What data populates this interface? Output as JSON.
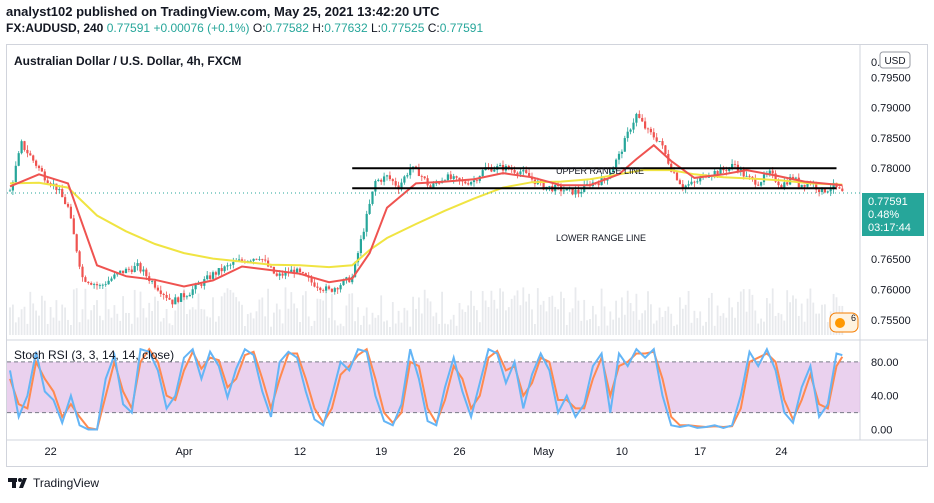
{
  "header": {
    "published_line": "analyst102 published on TradingView.com, May 25, 2021 13:42:20 UTC",
    "quote": {
      "symbol": "FX:AUDUSD, 240",
      "last": "0.77591",
      "change": "+0.00076 (+0.1%)",
      "o_label": "O:",
      "o": "0.77582",
      "h_label": "H:",
      "h": "0.77632",
      "l_label": "L:",
      "l": "0.77525",
      "c_label": "C:",
      "c": "0.77591"
    }
  },
  "price_pane": {
    "title": "Australian Dollar / U.S. Dollar, 4h, FXCM",
    "currency_button": "USD",
    "axis_ticks": [
      "0.79500",
      "0.79000",
      "0.78500",
      "0.78000",
      "0.77500",
      "0.77000",
      "0.76500",
      "0.76000",
      "0.75500"
    ],
    "top_tick_partial": "0.",
    "price_label": "0.77591",
    "percent_label": "0.48%",
    "countdown_label": "03:17:44",
    "upper_range_label": "UPPER RANGE LINE",
    "lower_range_label": "LOWER RANGE LINE",
    "event_badge": "6"
  },
  "stoch_pane": {
    "title": "Stoch RSI (3, 3, 14, 14, close)",
    "axis_ticks": [
      "80.00",
      "40.00",
      "0.00"
    ]
  },
  "time_axis": [
    "22",
    "Apr",
    "12",
    "19",
    "26",
    "May",
    "10",
    "17",
    "24"
  ],
  "colors": {
    "up": "#26a69a",
    "down": "#ef5350",
    "ma_fast": "#ef5350",
    "ma_slow": "#f0e442",
    "stoch_k": "#64b5f6",
    "stoch_d": "#ff8a50",
    "band": "#e1bee7"
  },
  "footer": {
    "brand": "TradingView"
  },
  "chart_data": [
    {
      "type": "candlestick",
      "title": "Australian Dollar / U.S. Dollar, 4h, FXCM",
      "ylim": [
        0.7525,
        0.7995
      ],
      "upper_range": 0.78,
      "lower_range": 0.7767,
      "anchors_close": [
        [
          0,
          0.7762
        ],
        [
          4,
          0.784
        ],
        [
          12,
          0.7786
        ],
        [
          16,
          0.7768
        ],
        [
          20,
          0.7735
        ],
        [
          25,
          0.762
        ],
        [
          31,
          0.7605
        ],
        [
          38,
          0.7628
        ],
        [
          44,
          0.7638
        ],
        [
          50,
          0.7608
        ],
        [
          56,
          0.758
        ],
        [
          62,
          0.7596
        ],
        [
          70,
          0.7625
        ],
        [
          78,
          0.7645
        ],
        [
          86,
          0.7655
        ],
        [
          92,
          0.7621
        ],
        [
          98,
          0.7632
        ],
        [
          104,
          0.7612
        ],
        [
          110,
          0.7598
        ],
        [
          118,
          0.762
        ],
        [
          122,
          0.77
        ],
        [
          126,
          0.7778
        ],
        [
          130,
          0.7786
        ],
        [
          134,
          0.777
        ],
        [
          138,
          0.78
        ],
        [
          141,
          0.7793
        ],
        [
          145,
          0.7768
        ],
        [
          150,
          0.7786
        ],
        [
          156,
          0.7776
        ],
        [
          160,
          0.778
        ],
        [
          164,
          0.78
        ],
        [
          170,
          0.7801
        ],
        [
          176,
          0.7795
        ],
        [
          180,
          0.7782
        ],
        [
          184,
          0.777
        ],
        [
          190,
          0.7765
        ],
        [
          196,
          0.776
        ],
        [
          200,
          0.7775
        ],
        [
          205,
          0.778
        ],
        [
          210,
          0.782
        ],
        [
          214,
          0.7868
        ],
        [
          216,
          0.7888
        ],
        [
          220,
          0.786
        ],
        [
          224,
          0.7845
        ],
        [
          228,
          0.78
        ],
        [
          232,
          0.777
        ],
        [
          236,
          0.7775
        ],
        [
          240,
          0.779
        ],
        [
          246,
          0.7797
        ],
        [
          250,
          0.7806
        ],
        [
          254,
          0.7784
        ],
        [
          258,
          0.7777
        ],
        [
          262,
          0.7791
        ],
        [
          266,
          0.7772
        ],
        [
          270,
          0.7786
        ],
        [
          272,
          0.7773
        ],
        [
          276,
          0.7777
        ],
        [
          280,
          0.7762
        ],
        [
          284,
          0.777
        ],
        [
          287,
          0.7759
        ]
      ],
      "ma_fast": [
        [
          0,
          0.777
        ],
        [
          10,
          0.779
        ],
        [
          20,
          0.7775
        ],
        [
          30,
          0.764
        ],
        [
          40,
          0.7622
        ],
        [
          50,
          0.7616
        ],
        [
          60,
          0.7605
        ],
        [
          70,
          0.7615
        ],
        [
          80,
          0.7638
        ],
        [
          90,
          0.7632
        ],
        [
          100,
          0.7626
        ],
        [
          110,
          0.7612
        ],
        [
          118,
          0.7618
        ],
        [
          124,
          0.766
        ],
        [
          130,
          0.7735
        ],
        [
          140,
          0.7775
        ],
        [
          150,
          0.7778
        ],
        [
          160,
          0.7782
        ],
        [
          170,
          0.7792
        ],
        [
          180,
          0.7785
        ],
        [
          190,
          0.7772
        ],
        [
          200,
          0.7772
        ],
        [
          210,
          0.779
        ],
        [
          216,
          0.7815
        ],
        [
          222,
          0.7838
        ],
        [
          228,
          0.7812
        ],
        [
          236,
          0.7784
        ],
        [
          246,
          0.779
        ],
        [
          254,
          0.7797
        ],
        [
          264,
          0.7788
        ],
        [
          274,
          0.7778
        ],
        [
          287,
          0.7772
        ]
      ],
      "ma_slow": [
        [
          0,
          0.7775
        ],
        [
          10,
          0.7776
        ],
        [
          20,
          0.7768
        ],
        [
          30,
          0.7722
        ],
        [
          40,
          0.7696
        ],
        [
          50,
          0.7675
        ],
        [
          60,
          0.766
        ],
        [
          70,
          0.7651
        ],
        [
          80,
          0.7646
        ],
        [
          90,
          0.7641
        ],
        [
          100,
          0.764
        ],
        [
          110,
          0.7637
        ],
        [
          118,
          0.764
        ],
        [
          124,
          0.7665
        ],
        [
          130,
          0.7685
        ],
        [
          140,
          0.7708
        ],
        [
          150,
          0.773
        ],
        [
          160,
          0.775
        ],
        [
          170,
          0.7768
        ],
        [
          180,
          0.7777
        ],
        [
          190,
          0.7778
        ],
        [
          200,
          0.7782
        ],
        [
          210,
          0.779
        ],
        [
          218,
          0.7797
        ],
        [
          228,
          0.7797
        ],
        [
          236,
          0.779
        ],
        [
          246,
          0.7785
        ],
        [
          256,
          0.7783
        ],
        [
          266,
          0.778
        ],
        [
          276,
          0.7775
        ],
        [
          287,
          0.7773
        ]
      ]
    },
    {
      "type": "line",
      "title": "Stoch RSI (3, 3, 14, 14, close)",
      "ylim": [
        -10,
        100
      ],
      "bands": [
        20,
        80
      ],
      "k": [
        [
          0,
          70
        ],
        [
          3,
          15
        ],
        [
          6,
          40
        ],
        [
          9,
          92
        ],
        [
          12,
          45
        ],
        [
          15,
          35
        ],
        [
          18,
          8
        ],
        [
          21,
          40
        ],
        [
          24,
          5
        ],
        [
          27,
          0
        ],
        [
          30,
          0
        ],
        [
          33,
          60
        ],
        [
          36,
          88
        ],
        [
          39,
          30
        ],
        [
          42,
          20
        ],
        [
          45,
          95
        ],
        [
          48,
          92
        ],
        [
          51,
          70
        ],
        [
          54,
          25
        ],
        [
          57,
          40
        ],
        [
          60,
          85
        ],
        [
          63,
          95
        ],
        [
          66,
          60
        ],
        [
          69,
          92
        ],
        [
          72,
          75
        ],
        [
          75,
          38
        ],
        [
          78,
          72
        ],
        [
          81,
          95
        ],
        [
          84,
          88
        ],
        [
          87,
          45
        ],
        [
          90,
          15
        ],
        [
          93,
          80
        ],
        [
          96,
          92
        ],
        [
          99,
          85
        ],
        [
          102,
          45
        ],
        [
          105,
          12
        ],
        [
          108,
          5
        ],
        [
          111,
          40
        ],
        [
          114,
          80
        ],
        [
          117,
          70
        ],
        [
          120,
          95
        ],
        [
          123,
          92
        ],
        [
          126,
          40
        ],
        [
          129,
          10
        ],
        [
          132,
          5
        ],
        [
          135,
          30
        ],
        [
          138,
          95
        ],
        [
          141,
          60
        ],
        [
          144,
          10
        ],
        [
          147,
          5
        ],
        [
          150,
          50
        ],
        [
          153,
          85
        ],
        [
          156,
          45
        ],
        [
          159,
          15
        ],
        [
          162,
          55
        ],
        [
          165,
          95
        ],
        [
          168,
          90
        ],
        [
          171,
          55
        ],
        [
          174,
          80
        ],
        [
          177,
          25
        ],
        [
          180,
          65
        ],
        [
          183,
          90
        ],
        [
          186,
          70
        ],
        [
          189,
          20
        ],
        [
          192,
          40
        ],
        [
          195,
          15
        ],
        [
          198,
          30
        ],
        [
          201,
          75
        ],
        [
          204,
          90
        ],
        [
          207,
          20
        ],
        [
          210,
          90
        ],
        [
          213,
          75
        ],
        [
          216,
          95
        ],
        [
          219,
          85
        ],
        [
          222,
          95
        ],
        [
          225,
          40
        ],
        [
          228,
          5
        ],
        [
          231,
          3
        ],
        [
          234,
          5
        ],
        [
          237,
          2
        ],
        [
          240,
          3
        ],
        [
          243,
          5
        ],
        [
          246,
          2
        ],
        [
          249,
          5
        ],
        [
          252,
          40
        ],
        [
          255,
          92
        ],
        [
          258,
          75
        ],
        [
          261,
          95
        ],
        [
          264,
          70
        ],
        [
          267,
          20
        ],
        [
          270,
          8
        ],
        [
          273,
          50
        ],
        [
          276,
          75
        ],
        [
          279,
          15
        ],
        [
          282,
          30
        ],
        [
          285,
          90
        ],
        [
          287,
          88
        ]
      ],
      "d": [
        [
          0,
          60
        ],
        [
          3,
          30
        ],
        [
          6,
          25
        ],
        [
          9,
          80
        ],
        [
          12,
          60
        ],
        [
          15,
          45
        ],
        [
          18,
          15
        ],
        [
          21,
          30
        ],
        [
          24,
          15
        ],
        [
          27,
          2
        ],
        [
          30,
          0
        ],
        [
          33,
          40
        ],
        [
          36,
          80
        ],
        [
          39,
          45
        ],
        [
          42,
          25
        ],
        [
          45,
          80
        ],
        [
          48,
          95
        ],
        [
          51,
          80
        ],
        [
          54,
          40
        ],
        [
          57,
          35
        ],
        [
          60,
          70
        ],
        [
          63,
          92
        ],
        [
          66,
          72
        ],
        [
          69,
          85
        ],
        [
          72,
          82
        ],
        [
          75,
          50
        ],
        [
          78,
          60
        ],
        [
          81,
          88
        ],
        [
          84,
          92
        ],
        [
          87,
          60
        ],
        [
          90,
          25
        ],
        [
          93,
          60
        ],
        [
          96,
          90
        ],
        [
          99,
          90
        ],
        [
          102,
          60
        ],
        [
          105,
          25
        ],
        [
          108,
          8
        ],
        [
          111,
          25
        ],
        [
          114,
          65
        ],
        [
          117,
          75
        ],
        [
          120,
          88
        ],
        [
          123,
          95
        ],
        [
          126,
          60
        ],
        [
          129,
          20
        ],
        [
          132,
          8
        ],
        [
          135,
          20
        ],
        [
          138,
          80
        ],
        [
          141,
          75
        ],
        [
          144,
          25
        ],
        [
          147,
          8
        ],
        [
          150,
          35
        ],
        [
          153,
          75
        ],
        [
          156,
          60
        ],
        [
          159,
          25
        ],
        [
          162,
          40
        ],
        [
          165,
          85
        ],
        [
          168,
          93
        ],
        [
          171,
          70
        ],
        [
          174,
          75
        ],
        [
          177,
          40
        ],
        [
          180,
          55
        ],
        [
          183,
          85
        ],
        [
          186,
          80
        ],
        [
          189,
          35
        ],
        [
          192,
          35
        ],
        [
          195,
          25
        ],
        [
          198,
          25
        ],
        [
          201,
          60
        ],
        [
          204,
          85
        ],
        [
          207,
          40
        ],
        [
          210,
          75
        ],
        [
          213,
          80
        ],
        [
          216,
          90
        ],
        [
          219,
          90
        ],
        [
          222,
          92
        ],
        [
          225,
          60
        ],
        [
          228,
          15
        ],
        [
          231,
          5
        ],
        [
          234,
          5
        ],
        [
          237,
          4
        ],
        [
          240,
          3
        ],
        [
          243,
          4
        ],
        [
          246,
          3
        ],
        [
          249,
          4
        ],
        [
          252,
          25
        ],
        [
          255,
          80
        ],
        [
          258,
          85
        ],
        [
          261,
          90
        ],
        [
          264,
          80
        ],
        [
          267,
          35
        ],
        [
          270,
          12
        ],
        [
          273,
          35
        ],
        [
          276,
          65
        ],
        [
          279,
          30
        ],
        [
          282,
          25
        ],
        [
          285,
          75
        ],
        [
          287,
          86
        ]
      ]
    }
  ]
}
